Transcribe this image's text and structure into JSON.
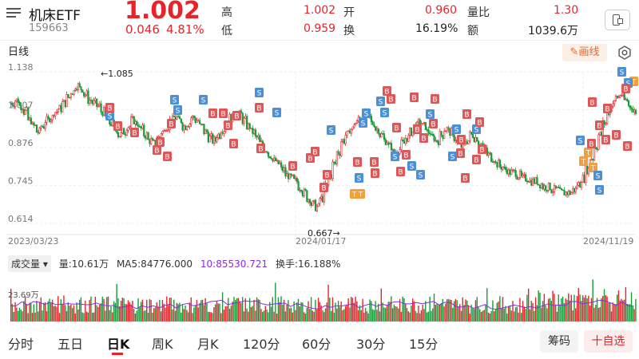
{
  "header": {
    "title": "机床ETF",
    "code": "159663",
    "price": "1.002",
    "change": "0.046",
    "change_pct": "4.81%",
    "high_label": "高",
    "high": "1.002",
    "low_label": "低",
    "low": "0.959",
    "open_label": "开",
    "open": "0.960",
    "turnover_label": "换",
    "turnover": "16.19%",
    "vol_ratio_label": "量比",
    "vol_ratio": "1.30",
    "amount_label": "额",
    "amount": "1039.6万"
  },
  "toolbar": {
    "period": "日线",
    "draw_label": "画线"
  },
  "chart": {
    "y_ticks": [
      "1.138",
      "1.007",
      "0.876",
      "0.745",
      "0.614"
    ],
    "x_ticks": [
      "2023/03/23",
      "2024/01/17",
      "2024/11/19"
    ],
    "max_label": "1.085",
    "min_label": "0.667",
    "vol_tick": "23.69万"
  },
  "volume_bar": {
    "selector": "成交量",
    "vol": "量:10.61万",
    "ma5": "MA5:84776.000",
    "ma10": "10:85530.721",
    "turnover": "换手:16.188%"
  },
  "tabs": [
    "分时",
    "五日",
    "日K",
    "周K",
    "月K",
    "120分",
    "60分",
    "30分",
    "15分"
  ],
  "buttons": {
    "chips": "筹码",
    "add_watch": "十自选"
  },
  "colors": {
    "up": "#e8242a",
    "down": "#1a9a3a",
    "buy_marker": "#e05555",
    "sell_marker": "#4a90d9",
    "t_marker": "#f0a040",
    "ma": "#8a2be2"
  },
  "chart_data": {
    "type": "candlestick",
    "y_range": [
      0.614,
      1.138
    ],
    "date_range": [
      "2023/03/23",
      "2024/11/19"
    ],
    "max": 1.085,
    "min": 0.667,
    "close_path": [
      1.03,
      1.04,
      1.02,
      1.0,
      0.97,
      0.95,
      0.93,
      0.95,
      0.97,
      0.98,
      1.0,
      1.01,
      1.03,
      1.05,
      1.07,
      1.09,
      1.08,
      1.06,
      1.04,
      1.03,
      1.02,
      1.0,
      0.98,
      0.96,
      0.94,
      0.92,
      0.93,
      0.95,
      0.97,
      0.96,
      0.94,
      0.92,
      0.9,
      0.89,
      0.91,
      0.93,
      0.95,
      0.97,
      0.98,
      0.97,
      0.95,
      0.96,
      0.98,
      0.97,
      0.95,
      0.93,
      0.91,
      0.9,
      0.92,
      0.94,
      0.96,
      0.98,
      1.0,
      0.99,
      0.97,
      0.95,
      0.93,
      0.91,
      0.89,
      0.87,
      0.85,
      0.83,
      0.82,
      0.8,
      0.78,
      0.77,
      0.76,
      0.74,
      0.72,
      0.7,
      0.68,
      0.67,
      0.7,
      0.74,
      0.78,
      0.82,
      0.86,
      0.9,
      0.92,
      0.94,
      0.96,
      0.98,
      0.99,
      0.98,
      0.96,
      0.94,
      0.92,
      0.9,
      0.88,
      0.86,
      0.87,
      0.89,
      0.91,
      0.93,
      0.95,
      0.96,
      0.95,
      0.93,
      0.91,
      0.9,
      0.92,
      0.94,
      0.93,
      0.91,
      0.89,
      0.88,
      0.9,
      0.92,
      0.91,
      0.89,
      0.87,
      0.85,
      0.84,
      0.82,
      0.81,
      0.8,
      0.79,
      0.79,
      0.78,
      0.77,
      0.77,
      0.76,
      0.76,
      0.75,
      0.74,
      0.74,
      0.73,
      0.73,
      0.72,
      0.72,
      0.72,
      0.73,
      0.75,
      0.77,
      0.8,
      0.84,
      0.88,
      0.92,
      0.96,
      1.0,
      1.03,
      1.05,
      1.06,
      1.04,
      1.02,
      1.0
    ]
  }
}
